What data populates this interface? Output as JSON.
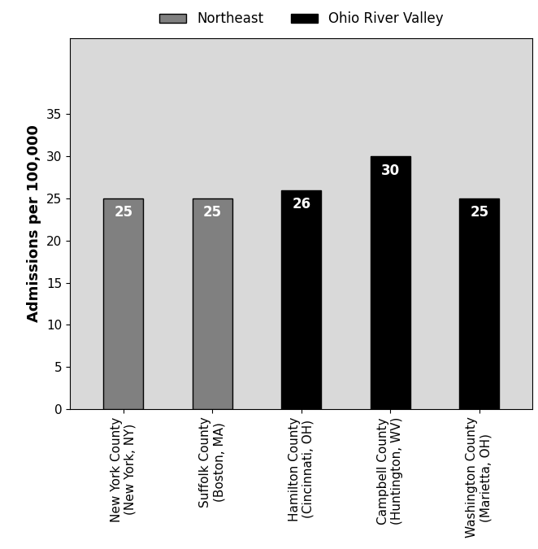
{
  "chart_data": {
    "type": "bar",
    "y_label": "Admissions per 100,000",
    "categories": [
      "New York County\n(New York, NY)",
      "Suffolk County\n(Boston, MA)",
      "Hamilton County\n(Cincinnati, OH)",
      "Campbell County\n(Huntington, WV)",
      "Washington County\n(Marietta, OH)"
    ],
    "series": [
      {
        "name": "Northeast",
        "color": "#808080",
        "values": [
          25,
          25,
          null,
          null,
          null
        ]
      },
      {
        "name": "Ohio River Valley",
        "color": "#000000",
        "values": [
          null,
          null,
          26,
          30,
          25
        ]
      }
    ],
    "ylim": [
      0,
      44
    ],
    "yticks": [
      0,
      5,
      10,
      15,
      20,
      25,
      30,
      35
    ],
    "grid": false,
    "legend": "top",
    "data_labels": true
  }
}
